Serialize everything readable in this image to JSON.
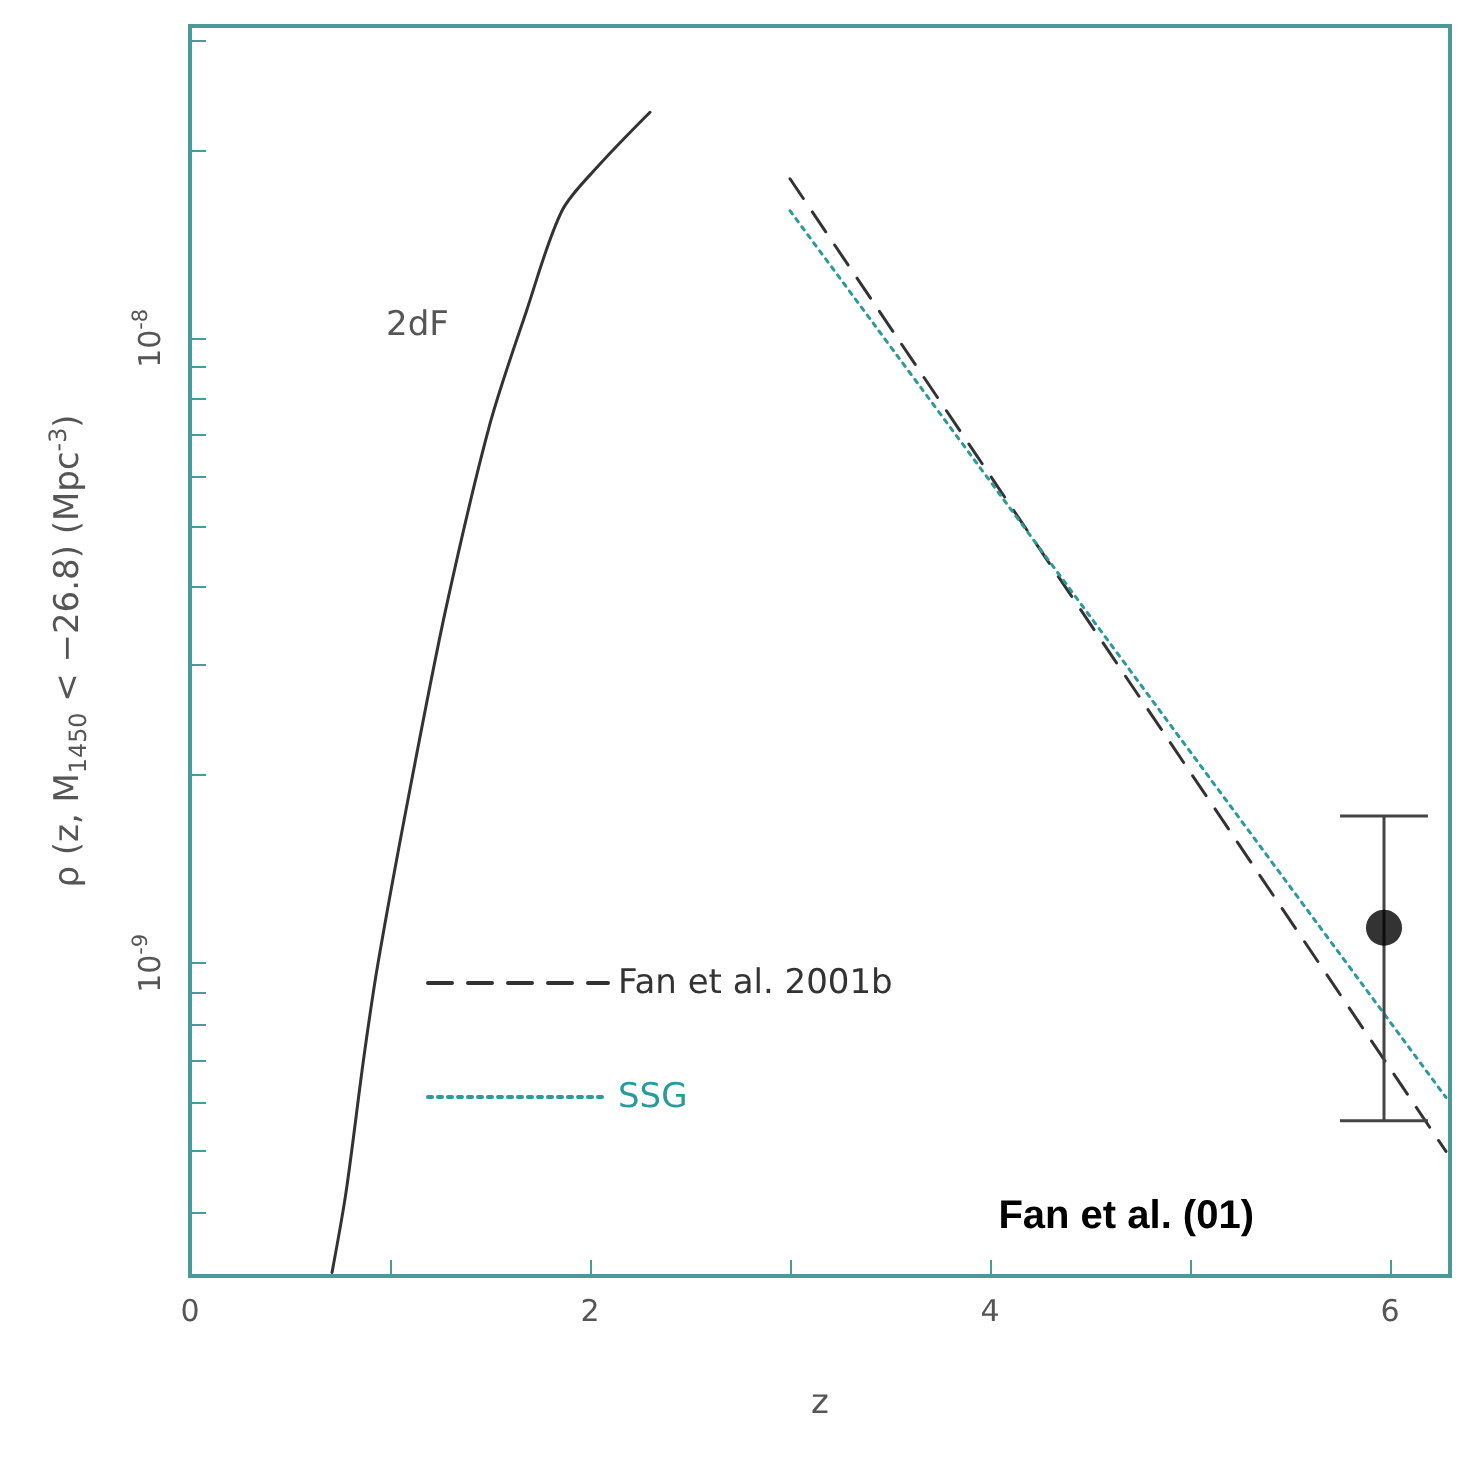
{
  "chart_data": {
    "type": "line",
    "xlabel": "z",
    "ylabel": "ρ (z, M$_{1450}$ < −26.8) (Mpc$^{-3}$)",
    "log": "y",
    "xlim": [
      0,
      6.3
    ],
    "xticks": [
      0,
      {
        "value": 1,
        "label": null
      },
      2,
      {
        "value": 3,
        "label": null
      },
      4,
      {
        "value": 5,
        "label": null
      },
      6
    ],
    "ylim": [
      3.16e-10,
      3.16e-08
    ],
    "yticks": [
      {
        "value": 4e-10,
        "label": null
      },
      {
        "value": 5e-10,
        "label": null
      },
      {
        "value": 6e-10,
        "label": null
      },
      {
        "value": 7e-10,
        "label": null
      },
      {
        "value": 8e-10,
        "label": null
      },
      {
        "value": 9e-10,
        "label": null
      },
      {
        "value": 1e-09,
        "label": "10$^{-9}$"
      },
      {
        "value": 2e-09,
        "label": null
      },
      {
        "value": 3e-09,
        "label": null
      },
      {
        "value": 4e-09,
        "label": null
      },
      {
        "value": 5e-09,
        "label": null
      },
      {
        "value": 6e-09,
        "label": null
      },
      {
        "value": 7e-09,
        "label": null
      },
      {
        "value": 8e-09,
        "label": null
      },
      {
        "value": 9e-09,
        "label": null
      },
      {
        "value": 1e-08,
        "label": "10$^{-8}$"
      },
      {
        "value": 2e-08,
        "label": null
      },
      {
        "value": 3e-08,
        "label": null
      }
    ],
    "grid": false,
    "legend": "bottom",
    "series": [
      {
        "color": "#333333",
        "line_style": "solid",
        "x": [
          0.71,
          0.78,
          0.87,
          0.94,
          1.1,
          1.28,
          1.5,
          1.68,
          1.86,
          2.05,
          2.3
        ],
        "values": [
          3.2e-10,
          4.3e-10,
          7.1e-10,
          1e-09,
          1.9e-09,
          3.7e-09,
          7.3e-09,
          1.1e-08,
          1.6e-08,
          1.9e-08,
          2.3e-08
        ]
      },
      {
        "name": "Fan et al. 2001b",
        "color": "#333333",
        "line_style": "dashed",
        "x": [
          3.0,
          6.28
        ],
        "values": [
          1.8e-08,
          5e-10
        ]
      },
      {
        "name": "SSG",
        "color": "#2a9a9a",
        "line_style": "dotted",
        "x": [
          3.0,
          6.28
        ],
        "values": [
          1.6e-08,
          6.1e-10
        ]
      },
      {
        "type": "scatter",
        "color": "#000000",
        "marker": "circle",
        "x": [
          5.97
        ],
        "values": [
          1.14e-09
        ],
        "errors": [
          5.8e-10
        ]
      }
    ],
    "annotations": [
      "2dF",
      "Fan et al. (01)"
    ]
  }
}
